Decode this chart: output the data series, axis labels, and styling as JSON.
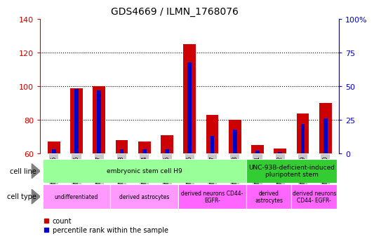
{
  "title": "GDS4669 / ILMN_1768076",
  "samples": [
    "GSM997555",
    "GSM997556",
    "GSM997557",
    "GSM997563",
    "GSM997564",
    "GSM997565",
    "GSM997566",
    "GSM997567",
    "GSM997568",
    "GSM997571",
    "GSM997572",
    "GSM997569",
    "GSM997570"
  ],
  "count_values": [
    67,
    99,
    100,
    68,
    67,
    71,
    125,
    83,
    80,
    65,
    63,
    84,
    90
  ],
  "percentile_values": [
    3,
    48,
    47,
    3,
    3,
    3,
    68,
    13,
    18,
    2,
    1,
    22,
    26
  ],
  "ylim_left": [
    60,
    140
  ],
  "ylim_right": [
    0,
    100
  ],
  "yticks_left": [
    60,
    80,
    100,
    120,
    140
  ],
  "yticks_right": [
    0,
    25,
    50,
    75,
    100
  ],
  "count_color": "#cc0000",
  "percentile_color": "#0000cc",
  "grid_color": "#000000",
  "cell_line_groups": [
    {
      "label": "embryonic stem cell H9",
      "start": 0,
      "end": 8,
      "color": "#99ff99"
    },
    {
      "label": "UNC-93B-deficient-induced\npluripotent stem",
      "start": 9,
      "end": 12,
      "color": "#33cc33"
    }
  ],
  "cell_type_groups": [
    {
      "label": "undifferentiated",
      "start": 0,
      "end": 2,
      "color": "#ff99ff"
    },
    {
      "label": "derived astrocytes",
      "start": 3,
      "end": 5,
      "color": "#ff99ff"
    },
    {
      "label": "derived neurons CD44-\nEGFR-",
      "start": 6,
      "end": 8,
      "color": "#ff66ff"
    },
    {
      "label": "derived\nastrocytes",
      "start": 9,
      "end": 10,
      "color": "#ff66ff"
    },
    {
      "label": "derived neurons\nCD44- EGFR-",
      "start": 11,
      "end": 12,
      "color": "#ff66ff"
    }
  ],
  "left_axis_color": "#cc0000",
  "right_axis_color": "#0000cc",
  "tick_bg_color": "#c8c8c8",
  "cell_line_label": "cell line",
  "cell_type_label": "cell type",
  "legend_count": "count",
  "legend_pct": "percentile rank within the sample"
}
